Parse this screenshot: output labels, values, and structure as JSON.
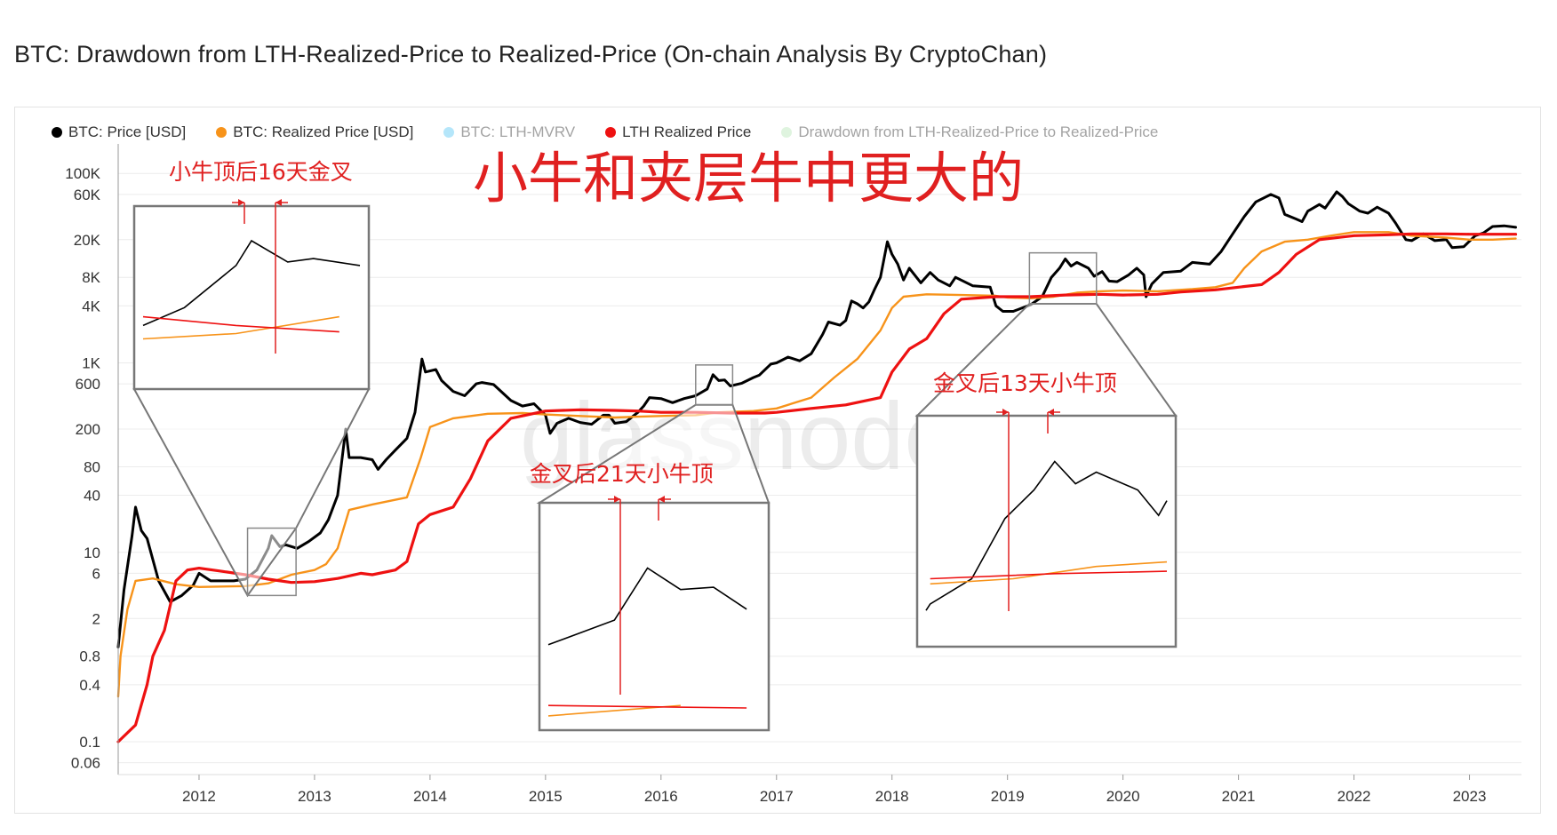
{
  "page": {
    "title": "BTC: Drawdown from LTH-Realized-Price to Realized-Price (On-chain Analysis By CryptoChan)",
    "watermark": "glassnode"
  },
  "legend": [
    {
      "label": "BTC: Price [USD]",
      "color": "#000000",
      "faded": false
    },
    {
      "label": "BTC: Realized Price [USD]",
      "color": "#f7931a",
      "faded": false
    },
    {
      "label": "BTC: LTH-MVRV",
      "color": "#5bc8f5",
      "faded": true
    },
    {
      "label": "LTH Realized Price",
      "color": "#ee1111",
      "faded": false
    },
    {
      "label": "Drawdown from LTH-Realized-Price to Realized-Price",
      "color": "#b9e6b9",
      "faded": true
    }
  ],
  "annotations": {
    "headline": "小牛和夹层牛中更大的",
    "box1": "小牛顶后16天金叉",
    "box2": "金叉后21天小牛顶",
    "box3": "金叉后13天小牛顶"
  },
  "chart_data": {
    "type": "line",
    "title": "BTC: Drawdown from LTH-Realized-Price to Realized-Price (On-chain Analysis By CryptoChan)",
    "y_scale": "log",
    "ylim": [
      0.045,
      180000
    ],
    "xlim": [
      2011.3,
      2023.45
    ],
    "x_tick_labels": [
      "2012",
      "2013",
      "2014",
      "2015",
      "2016",
      "2017",
      "2018",
      "2019",
      "2020",
      "2021",
      "2022",
      "2023"
    ],
    "y_tick_labels": [
      "0.06",
      "0.1",
      "0.4",
      "0.8",
      "2",
      "6",
      "10",
      "40",
      "80",
      "200",
      "600",
      "1K",
      "4K",
      "8K",
      "20K",
      "60K",
      "100K"
    ],
    "grid": true,
    "legend_position": "top-left",
    "series": [
      {
        "name": "BTC: Price [USD]",
        "color": "#000000",
        "points": [
          [
            2011.3,
            1.0
          ],
          [
            2011.35,
            4
          ],
          [
            2011.42,
            15
          ],
          [
            2011.45,
            30
          ],
          [
            2011.5,
            17
          ],
          [
            2011.55,
            14
          ],
          [
            2011.65,
            5
          ],
          [
            2011.75,
            3.0
          ],
          [
            2011.85,
            3.5
          ],
          [
            2011.95,
            4.5
          ],
          [
            2012.0,
            6
          ],
          [
            2012.1,
            5
          ],
          [
            2012.2,
            5
          ],
          [
            2012.3,
            5
          ],
          [
            2012.4,
            5.2
          ],
          [
            2012.5,
            6.5
          ],
          [
            2012.6,
            11
          ],
          [
            2012.63,
            15
          ],
          [
            2012.7,
            11.5
          ],
          [
            2012.75,
            12
          ],
          [
            2012.85,
            11
          ],
          [
            2012.95,
            13
          ],
          [
            2013.05,
            16
          ],
          [
            2013.12,
            22
          ],
          [
            2013.2,
            40
          ],
          [
            2013.27,
            200
          ],
          [
            2013.3,
            100
          ],
          [
            2013.4,
            100
          ],
          [
            2013.5,
            95
          ],
          [
            2013.55,
            75
          ],
          [
            2013.62,
            95
          ],
          [
            2013.7,
            120
          ],
          [
            2013.8,
            160
          ],
          [
            2013.87,
            300
          ],
          [
            2013.93,
            1100
          ],
          [
            2013.96,
            800
          ],
          [
            2014.05,
            850
          ],
          [
            2014.1,
            650
          ],
          [
            2014.2,
            500
          ],
          [
            2014.3,
            450
          ],
          [
            2014.4,
            600
          ],
          [
            2014.45,
            620
          ],
          [
            2014.55,
            590
          ],
          [
            2014.7,
            400
          ],
          [
            2014.8,
            350
          ],
          [
            2014.9,
            370
          ],
          [
            2015.0,
            280
          ],
          [
            2015.04,
            180
          ],
          [
            2015.1,
            230
          ],
          [
            2015.2,
            260
          ],
          [
            2015.3,
            235
          ],
          [
            2015.4,
            225
          ],
          [
            2015.5,
            280
          ],
          [
            2015.55,
            280
          ],
          [
            2015.6,
            230
          ],
          [
            2015.7,
            240
          ],
          [
            2015.8,
            300
          ],
          [
            2015.85,
            350
          ],
          [
            2015.9,
            430
          ],
          [
            2016.0,
            420
          ],
          [
            2016.1,
            380
          ],
          [
            2016.2,
            420
          ],
          [
            2016.3,
            450
          ],
          [
            2016.4,
            530
          ],
          [
            2016.45,
            750
          ],
          [
            2016.5,
            650
          ],
          [
            2016.55,
            660
          ],
          [
            2016.6,
            570
          ],
          [
            2016.7,
            610
          ],
          [
            2016.8,
            700
          ],
          [
            2016.85,
            740
          ],
          [
            2016.95,
            970
          ],
          [
            2017.0,
            1000
          ],
          [
            2017.1,
            1150
          ],
          [
            2017.2,
            1050
          ],
          [
            2017.3,
            1250
          ],
          [
            2017.4,
            2000
          ],
          [
            2017.45,
            2700
          ],
          [
            2017.55,
            2500
          ],
          [
            2017.6,
            2800
          ],
          [
            2017.65,
            4500
          ],
          [
            2017.7,
            4200
          ],
          [
            2017.75,
            3800
          ],
          [
            2017.8,
            4400
          ],
          [
            2017.85,
            6000
          ],
          [
            2017.9,
            8000
          ],
          [
            2017.96,
            19000
          ],
          [
            2018.0,
            14000
          ],
          [
            2018.05,
            11000
          ],
          [
            2018.1,
            7500
          ],
          [
            2018.15,
            10000
          ],
          [
            2018.25,
            7000
          ],
          [
            2018.33,
            9000
          ],
          [
            2018.4,
            7500
          ],
          [
            2018.5,
            6500
          ],
          [
            2018.55,
            8000
          ],
          [
            2018.7,
            6500
          ],
          [
            2018.85,
            6300
          ],
          [
            2018.9,
            4000
          ],
          [
            2018.96,
            3500
          ],
          [
            2019.05,
            3500
          ],
          [
            2019.15,
            3900
          ],
          [
            2019.2,
            4100
          ],
          [
            2019.3,
            5000
          ],
          [
            2019.38,
            8000
          ],
          [
            2019.45,
            10000
          ],
          [
            2019.5,
            12500
          ],
          [
            2019.55,
            10500
          ],
          [
            2019.6,
            11500
          ],
          [
            2019.7,
            10000
          ],
          [
            2019.75,
            8200
          ],
          [
            2019.82,
            9200
          ],
          [
            2019.88,
            7300
          ],
          [
            2019.95,
            7200
          ],
          [
            2020.05,
            8500
          ],
          [
            2020.12,
            10000
          ],
          [
            2020.18,
            8500
          ],
          [
            2020.2,
            5000
          ],
          [
            2020.25,
            6800
          ],
          [
            2020.35,
            9000
          ],
          [
            2020.5,
            9300
          ],
          [
            2020.6,
            11500
          ],
          [
            2020.75,
            11000
          ],
          [
            2020.85,
            15000
          ],
          [
            2020.95,
            23000
          ],
          [
            2021.05,
            35000
          ],
          [
            2021.15,
            50000
          ],
          [
            2021.28,
            60000
          ],
          [
            2021.35,
            55000
          ],
          [
            2021.4,
            37000
          ],
          [
            2021.5,
            33000
          ],
          [
            2021.55,
            31000
          ],
          [
            2021.6,
            40000
          ],
          [
            2021.7,
            47000
          ],
          [
            2021.75,
            43000
          ],
          [
            2021.85,
            64000
          ],
          [
            2021.9,
            57000
          ],
          [
            2021.95,
            48000
          ],
          [
            2022.05,
            40000
          ],
          [
            2022.12,
            38000
          ],
          [
            2022.2,
            44000
          ],
          [
            2022.3,
            38000
          ],
          [
            2022.36,
            30000
          ],
          [
            2022.45,
            20000
          ],
          [
            2022.5,
            19500
          ],
          [
            2022.6,
            23000
          ],
          [
            2022.7,
            19500
          ],
          [
            2022.8,
            20000
          ],
          [
            2022.85,
            16500
          ],
          [
            2022.95,
            16800
          ],
          [
            2023.05,
            22000
          ],
          [
            2023.12,
            23500
          ],
          [
            2023.2,
            27500
          ],
          [
            2023.3,
            28000
          ],
          [
            2023.4,
            27000
          ]
        ]
      },
      {
        "name": "BTC: Realized Price [USD]",
        "color": "#f7931a",
        "points": [
          [
            2011.3,
            0.3
          ],
          [
            2011.32,
            0.8
          ],
          [
            2011.38,
            2.5
          ],
          [
            2011.45,
            5.0
          ],
          [
            2011.6,
            5.3
          ],
          [
            2011.8,
            4.6
          ],
          [
            2012.0,
            4.3
          ],
          [
            2012.4,
            4.4
          ],
          [
            2012.6,
            4.7
          ],
          [
            2012.8,
            5.8
          ],
          [
            2013.0,
            6.5
          ],
          [
            2013.1,
            7.5
          ],
          [
            2013.2,
            11
          ],
          [
            2013.3,
            28
          ],
          [
            2013.5,
            32
          ],
          [
            2013.8,
            38
          ],
          [
            2013.92,
            100
          ],
          [
            2014.0,
            210
          ],
          [
            2014.2,
            260
          ],
          [
            2014.5,
            290
          ],
          [
            2014.8,
            295
          ],
          [
            2015.0,
            285
          ],
          [
            2015.3,
            275
          ],
          [
            2015.6,
            265
          ],
          [
            2015.8,
            270
          ],
          [
            2016.0,
            275
          ],
          [
            2016.3,
            280
          ],
          [
            2016.5,
            300
          ],
          [
            2016.8,
            310
          ],
          [
            2017.0,
            330
          ],
          [
            2017.3,
            430
          ],
          [
            2017.5,
            700
          ],
          [
            2017.7,
            1100
          ],
          [
            2017.9,
            2200
          ],
          [
            2018.0,
            3800
          ],
          [
            2018.1,
            5000
          ],
          [
            2018.3,
            5300
          ],
          [
            2018.6,
            5200
          ],
          [
            2018.9,
            5100
          ],
          [
            2019.0,
            4900
          ],
          [
            2019.2,
            4800
          ],
          [
            2019.4,
            5000
          ],
          [
            2019.6,
            5500
          ],
          [
            2019.8,
            5700
          ],
          [
            2020.0,
            5800
          ],
          [
            2020.3,
            5700
          ],
          [
            2020.6,
            6000
          ],
          [
            2020.8,
            6300
          ],
          [
            2020.95,
            7000
          ],
          [
            2021.05,
            10000
          ],
          [
            2021.2,
            15000
          ],
          [
            2021.4,
            19000
          ],
          [
            2021.6,
            20000
          ],
          [
            2021.8,
            22000
          ],
          [
            2022.0,
            24000
          ],
          [
            2022.3,
            24000
          ],
          [
            2022.5,
            22000
          ],
          [
            2022.8,
            21000
          ],
          [
            2023.0,
            20000
          ],
          [
            2023.2,
            20000
          ],
          [
            2023.4,
            20500
          ]
        ]
      },
      {
        "name": "LTH Realized Price",
        "color": "#ee1111",
        "points": [
          [
            2011.3,
            0.1
          ],
          [
            2011.45,
            0.15
          ],
          [
            2011.55,
            0.4
          ],
          [
            2011.6,
            0.8
          ],
          [
            2011.7,
            1.5
          ],
          [
            2011.8,
            5
          ],
          [
            2011.9,
            6.5
          ],
          [
            2012.0,
            6.8
          ],
          [
            2012.2,
            6.3
          ],
          [
            2012.4,
            5.8
          ],
          [
            2012.6,
            5.2
          ],
          [
            2012.8,
            4.8
          ],
          [
            2013.0,
            4.9
          ],
          [
            2013.2,
            5.3
          ],
          [
            2013.4,
            6.0
          ],
          [
            2013.5,
            5.8
          ],
          [
            2013.7,
            6.5
          ],
          [
            2013.8,
            8
          ],
          [
            2013.9,
            20
          ],
          [
            2014.0,
            25
          ],
          [
            2014.2,
            30
          ],
          [
            2014.35,
            60
          ],
          [
            2014.5,
            150
          ],
          [
            2014.7,
            260
          ],
          [
            2015.0,
            310
          ],
          [
            2015.3,
            320
          ],
          [
            2015.6,
            315
          ],
          [
            2015.8,
            310
          ],
          [
            2016.0,
            300
          ],
          [
            2016.3,
            300
          ],
          [
            2016.6,
            295
          ],
          [
            2016.9,
            295
          ],
          [
            2017.0,
            300
          ],
          [
            2017.3,
            330
          ],
          [
            2017.6,
            360
          ],
          [
            2017.9,
            430
          ],
          [
            2018.0,
            800
          ],
          [
            2018.15,
            1400
          ],
          [
            2018.3,
            1800
          ],
          [
            2018.45,
            3300
          ],
          [
            2018.6,
            4700
          ],
          [
            2018.9,
            5000
          ],
          [
            2019.2,
            5000
          ],
          [
            2019.5,
            5200
          ],
          [
            2019.8,
            5300
          ],
          [
            2020.0,
            5200
          ],
          [
            2020.3,
            5300
          ],
          [
            2020.5,
            5600
          ],
          [
            2020.8,
            5900
          ],
          [
            2021.0,
            6300
          ],
          [
            2021.2,
            6700
          ],
          [
            2021.35,
            9000
          ],
          [
            2021.5,
            14000
          ],
          [
            2021.7,
            20000
          ],
          [
            2022.0,
            22000
          ],
          [
            2022.3,
            22500
          ],
          [
            2022.5,
            23000
          ],
          [
            2022.8,
            23000
          ],
          [
            2023.0,
            22800
          ],
          [
            2023.4,
            22800
          ]
        ]
      }
    ],
    "zoom_boxes": [
      {
        "label": "小牛顶后16天金叉",
        "x_range": [
          2012.42,
          2012.84
        ],
        "y_range": [
          3.5,
          18
        ]
      },
      {
        "label": "金叉后21天小牛顶",
        "x_range": [
          2016.3,
          2016.62
        ],
        "y_range": [
          360,
          950
        ]
      },
      {
        "label": "金叉后13天小牛顶",
        "x_range": [
          2019.19,
          2019.77
        ],
        "y_range": [
          4200,
          14500
        ]
      }
    ]
  }
}
